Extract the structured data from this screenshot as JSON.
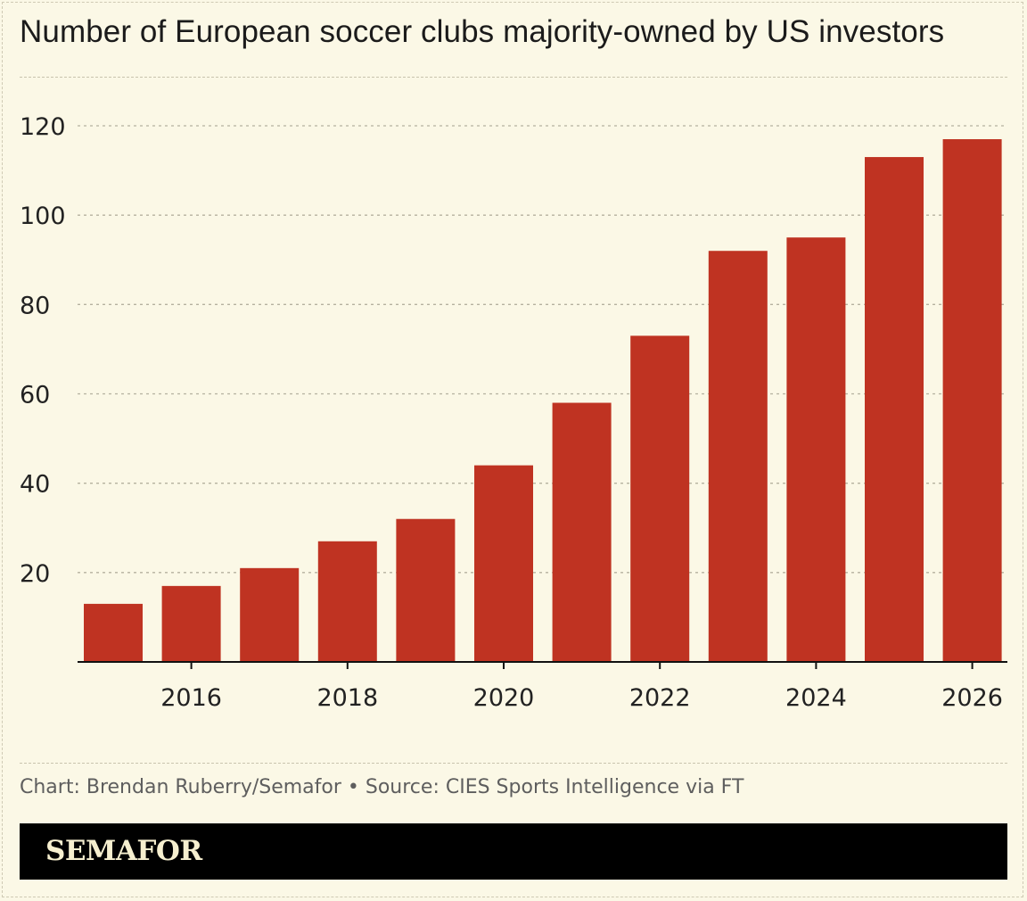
{
  "chart_data": {
    "type": "bar",
    "title": "Number of European soccer clubs majority-owned by US investors",
    "categories": [
      2015,
      2016,
      2017,
      2018,
      2019,
      2020,
      2021,
      2022,
      2023,
      2024,
      2025,
      2026
    ],
    "values": [
      13,
      17,
      21,
      27,
      32,
      44,
      58,
      73,
      92,
      95,
      113,
      117
    ],
    "x_ticks": [
      "2016",
      "2018",
      "2020",
      "2022",
      "2024",
      "2026"
    ],
    "y_ticks": [
      "20",
      "40",
      "60",
      "80",
      "100",
      "120"
    ],
    "ylim": [
      0,
      120
    ],
    "xlabel": "",
    "ylabel": "",
    "grid": true,
    "bar_color": "#bf3322"
  },
  "footer": {
    "source": "Chart: Brendan Ruberry/Semafor • Source: CIES Sports Intelligence via FT",
    "brand": "SEMAFOR"
  },
  "colors": {
    "background": "#fbf8e6",
    "bar": "#bf3322",
    "brand_bar": "#000000",
    "brand_text": "#f6efcf"
  }
}
